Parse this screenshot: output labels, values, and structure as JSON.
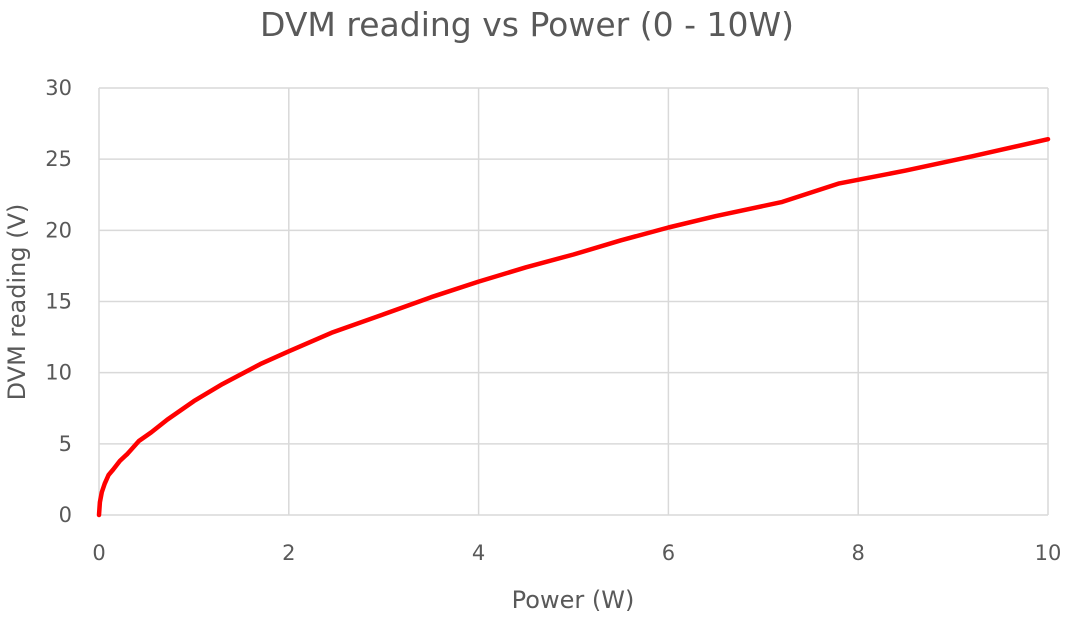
{
  "chart_data": {
    "type": "line",
    "title": "DVM reading vs Power (0 - 10W)",
    "xlabel": "Power (W)",
    "ylabel": "DVM reading (V)",
    "xlim": [
      0,
      10
    ],
    "ylim": [
      0,
      30
    ],
    "x_ticks": [
      "0",
      "2",
      "4",
      "6",
      "8",
      "10"
    ],
    "y_ticks": [
      "0",
      "5",
      "10",
      "15",
      "20",
      "25",
      "30"
    ],
    "grid": true,
    "legend": "none",
    "series": [
      {
        "color": "#ff0000",
        "x": [
          0,
          0.01,
          0.03,
          0.06,
          0.1,
          0.15,
          0.22,
          0.3,
          0.42,
          0.55,
          0.72,
          1.0,
          1.3,
          1.7,
          2.0,
          2.45,
          3.0,
          3.5,
          4.0,
          4.5,
          5.0,
          5.5,
          6.0,
          6.5,
          7.2,
          7.8,
          8.5,
          9.2,
          10.0
        ],
        "y": [
          0,
          0.9,
          1.6,
          2.2,
          2.8,
          3.2,
          3.8,
          4.3,
          5.2,
          5.8,
          6.7,
          8.0,
          9.2,
          10.6,
          11.5,
          12.8,
          14.1,
          15.3,
          16.4,
          17.4,
          18.3,
          19.3,
          20.2,
          21.0,
          22.0,
          23.3,
          24.2,
          25.2,
          26.4
        ]
      }
    ]
  }
}
